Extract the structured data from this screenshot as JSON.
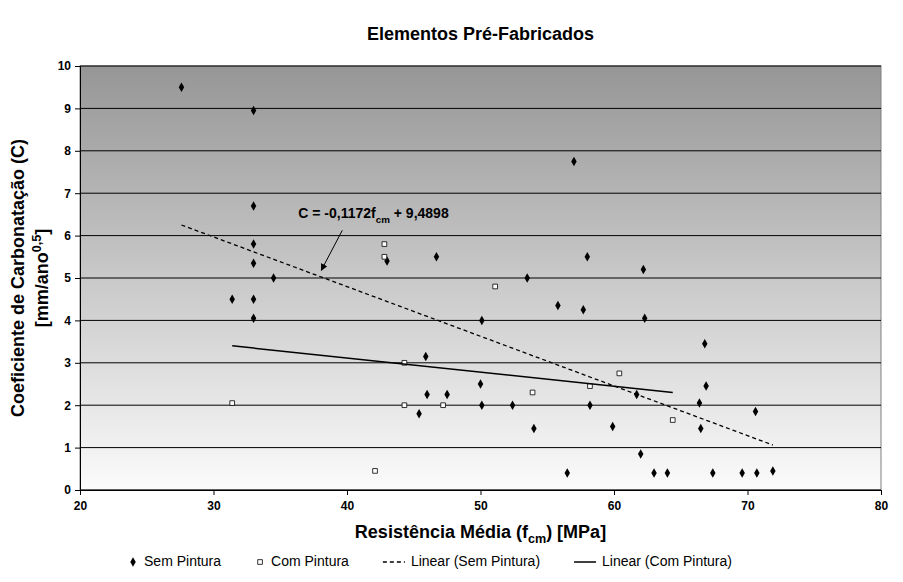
{
  "chart_data": {
    "type": "scatter",
    "title": "Elementos Pré-Fabricados",
    "x_label": {
      "parts": [
        {
          "text": "Resistência Média (f"
        },
        {
          "text": "cm",
          "sub": true
        },
        {
          "text": ") [MPa]"
        }
      ]
    },
    "y_label": {
      "lines": [
        [
          {
            "text": "Coeficiente de Carbonatação (C)"
          }
        ],
        [
          {
            "text": "[mm/ano"
          },
          {
            "text": "0,5",
            "sup": true
          },
          {
            "text": "]"
          }
        ]
      ]
    },
    "xlim": [
      20,
      80
    ],
    "xticks": [
      20,
      30,
      40,
      50,
      60,
      70,
      80
    ],
    "ylim": [
      0,
      10
    ],
    "yticks": [
      0,
      1,
      2,
      3,
      4,
      5,
      6,
      7,
      8,
      9,
      10
    ],
    "grid": true,
    "legend": "bottom",
    "series": [
      {
        "name": "Sem Pintura",
        "type": "scatter",
        "marker": "diamond",
        "color": "#000000",
        "x": [
          27.6,
          33.0,
          33.0,
          33.0,
          33.0,
          31.4,
          33.0,
          33.0,
          34.5,
          43.0,
          46.7,
          45.9,
          45.4,
          46.0,
          47.5,
          50.0,
          50.1,
          50.1,
          52.4,
          53.5,
          54.0,
          55.8,
          56.5,
          57.0,
          57.7,
          58.0,
          58.2,
          59.9,
          61.7,
          62.0,
          62.2,
          62.3,
          63.0,
          64.0,
          66.4,
          66.5,
          66.8,
          66.9,
          67.4,
          69.6,
          70.6,
          70.7,
          71.9
        ],
        "values": [
          9.5,
          8.95,
          6.7,
          5.8,
          5.35,
          4.5,
          4.5,
          4.05,
          5.0,
          5.4,
          5.5,
          3.15,
          1.8,
          2.25,
          2.25,
          2.5,
          4.0,
          2.0,
          2.0,
          5.0,
          1.45,
          4.35,
          0.4,
          7.75,
          4.25,
          5.5,
          2.0,
          1.5,
          2.25,
          0.85,
          5.2,
          4.05,
          0.4,
          0.4,
          2.05,
          1.45,
          3.45,
          2.45,
          0.4,
          0.4,
          1.85,
          0.4,
          0.45
        ]
      },
      {
        "name": "Com Pintura",
        "type": "scatter",
        "marker": "square-open",
        "color": "#000000",
        "x": [
          31.4,
          42.1,
          42.8,
          42.8,
          44.3,
          44.3,
          47.2,
          51.1,
          53.9,
          58.2,
          60.4,
          64.4
        ],
        "values": [
          2.05,
          0.45,
          5.8,
          5.5,
          3.0,
          2.0,
          2.0,
          4.8,
          2.3,
          2.45,
          2.75,
          1.65
        ]
      },
      {
        "name": "Linear (Sem Pintura)",
        "type": "line",
        "line_style": "dashed",
        "color": "#000000",
        "x": [
          27.6,
          71.9
        ],
        "values": [
          6.25,
          1.06
        ]
      },
      {
        "name": "Linear (Com Pintura)",
        "type": "line",
        "line_style": "solid",
        "color": "#000000",
        "x": [
          31.4,
          64.4
        ],
        "values": [
          3.4,
          2.3
        ]
      }
    ],
    "annotation": {
      "parts": [
        {
          "text": "C = -0,1172f"
        },
        {
          "text": "cm",
          "sub": true
        },
        {
          "text": " + 9,4898"
        }
      ],
      "x": 38,
      "y": 5.04
    }
  }
}
